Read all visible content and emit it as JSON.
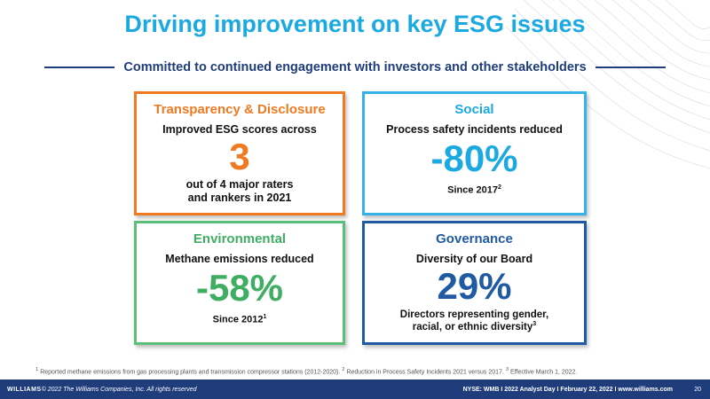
{
  "title": "Driving improvement on key ESG issues",
  "subtitle": "Committed to continued engagement with investors and other stakeholders",
  "cards": {
    "transparency": {
      "heading": "Transparency & Disclosure",
      "line1": "Improved ESG scores across",
      "big": "3",
      "line2": "out of 4 major raters",
      "line3": "and rankers in 2021",
      "color": "#ef7a22"
    },
    "social": {
      "heading": "Social",
      "line1": "Process safety incidents reduced",
      "big": "-80%",
      "since": "Since 2017",
      "sup": "2",
      "color": "#1ba9e1"
    },
    "environmental": {
      "heading": "Environmental",
      "line1": "Methane emissions reduced",
      "big": "-58%",
      "since": "Since 2012",
      "sup": "1",
      "color": "#3fae62"
    },
    "governance": {
      "heading": "Governance",
      "line1": "Diversity of our Board",
      "big": "29%",
      "line2": "Directors representing gender,",
      "line3": "racial, or ethnic diversity",
      "sup": "3",
      "color": "#1f5aa3"
    }
  },
  "footnotes": {
    "n1": "1",
    "t1": " Reported methane emissions from gas processing plants and transmission compressor stations (2012-2020). ",
    "n2": "2",
    "t2": " Reduction in Process Safety Incidents 2021 versus 2017. ",
    "n3": "3",
    "t3": " Effective March 1, 2022."
  },
  "footer": {
    "brand": "WILLIAMS",
    "copyright": "© 2022 The Williams Companies, Inc. All rights reserved",
    "info": "NYSE: WMB  I  2022 Analyst Day  I  February 22, 2022  I  www.williams.com",
    "page": "20"
  }
}
